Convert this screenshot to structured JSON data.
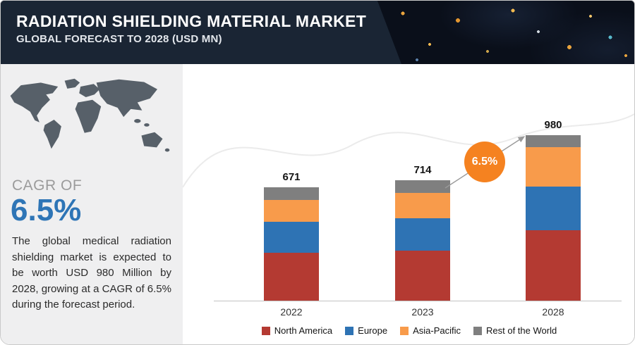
{
  "header": {
    "title": "RADIATION SHIELDING MATERIAL MARKET",
    "subtitle": "GLOBAL FORECAST TO 2028 (USD MN)"
  },
  "sidebar": {
    "cagr_label": "CAGR OF",
    "cagr_value": "6.5%",
    "description": "The global medical radiation shielding market is expected to be worth USD 980 Million by 2028, growing at a CAGR of 6.5% during the forecast period.",
    "map_icon": "world-map"
  },
  "chart_data": {
    "type": "bar",
    "stacked": true,
    "title": "Radiation Shielding Material Market, Global Forecast to 2028 (USD MN)",
    "categories": [
      "2022",
      "2023",
      "2028"
    ],
    "totals": [
      671,
      714,
      980
    ],
    "series": [
      {
        "name": "North America",
        "color": "#b43a32",
        "values": [
          285,
          298,
          417
        ]
      },
      {
        "name": "Europe",
        "color": "#2e73b4",
        "values": [
          183,
          192,
          259
        ]
      },
      {
        "name": "Asia-Pacific",
        "color": "#f89b4b",
        "values": [
          130,
          151,
          233
        ]
      },
      {
        "name": "Rest of the World",
        "color": "#7f7f7f",
        "values": [
          73,
          73,
          71
        ]
      }
    ],
    "ylabel": "USD MN",
    "legend_position": "bottom",
    "annotation": {
      "text": "6.5%",
      "color": "#f58220"
    }
  }
}
